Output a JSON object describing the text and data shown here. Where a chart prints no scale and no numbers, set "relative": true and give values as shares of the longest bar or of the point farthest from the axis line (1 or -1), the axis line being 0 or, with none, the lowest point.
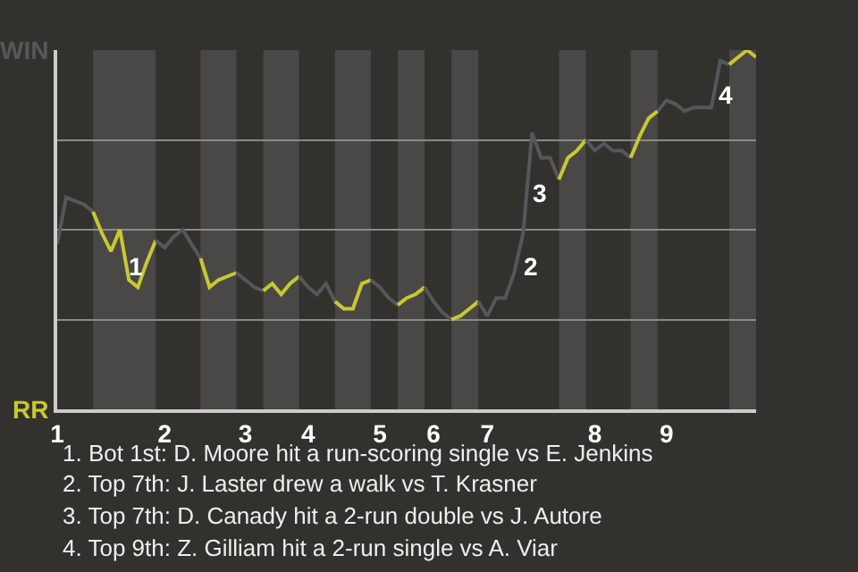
{
  "chart_data": {
    "type": "line",
    "relative": true,
    "categories": [
      "1",
      null,
      null,
      null,
      null,
      null,
      null,
      null,
      null,
      null,
      null,
      null,
      "2",
      null,
      null,
      null,
      null,
      null,
      null,
      null,
      null,
      "3",
      null,
      null,
      null,
      null,
      null,
      null,
      "4",
      null,
      null,
      null,
      null,
      null,
      null,
      null,
      "5",
      null,
      null,
      null,
      null,
      null,
      "6",
      null,
      null,
      null,
      null,
      null,
      "7",
      null,
      null,
      null,
      null,
      null,
      null,
      null,
      null,
      null,
      null,
      null,
      "8",
      null,
      null,
      null,
      null,
      null,
      null,
      null,
      "9",
      null,
      null,
      null,
      null,
      null,
      null,
      null,
      null,
      null,
      null
    ],
    "series": [
      {
        "color": "#55575a",
        "values": [
          0.46,
          0.59,
          0.58,
          0.57,
          0.55,
          null,
          null,
          null,
          null,
          null,
          null,
          null,
          null,
          null,
          null,
          null,
          null,
          null,
          null,
          null,
          null,
          null,
          null,
          null,
          null,
          null,
          null,
          null,
          null,
          null,
          null,
          null,
          null,
          null,
          null,
          null,
          null,
          null,
          null,
          null,
          null,
          null,
          null,
          null,
          null,
          null,
          null,
          null,
          null,
          null,
          null,
          null,
          null,
          null,
          null,
          null,
          null,
          null,
          null,
          null,
          null,
          null,
          null,
          null,
          null,
          null,
          null,
          null,
          null,
          null,
          null,
          null,
          null,
          null,
          null,
          null,
          null,
          null,
          null
        ]
      },
      {
        "color": "#c8c832",
        "values": [
          null,
          null,
          null,
          null,
          0.55,
          0.49,
          0.44,
          0.5,
          0.36,
          0.34,
          0.41,
          0.47,
          null,
          null,
          null,
          null,
          null,
          null,
          null,
          null,
          null,
          null,
          null,
          null,
          null,
          null,
          null,
          null,
          null,
          null,
          null,
          null,
          null,
          null,
          null,
          null,
          null,
          null,
          null,
          null,
          null,
          null,
          null,
          null,
          null,
          null,
          null,
          null,
          null,
          null,
          null,
          null,
          null,
          null,
          null,
          null,
          null,
          null,
          null,
          null,
          null,
          null,
          null,
          null,
          null,
          null,
          null,
          null,
          null,
          null,
          null,
          null,
          null,
          null,
          null,
          null,
          null,
          null,
          null
        ]
      },
      {
        "color": "#55575a",
        "values": [
          null,
          null,
          null,
          null,
          null,
          null,
          null,
          null,
          null,
          null,
          null,
          0.47,
          0.45,
          0.48,
          0.5,
          0.46,
          0.42,
          null,
          null,
          null,
          null,
          null,
          null,
          null,
          null,
          null,
          null,
          null,
          null,
          null,
          null,
          null,
          null,
          null,
          null,
          null,
          null,
          null,
          null,
          null,
          null,
          null,
          null,
          null,
          null,
          null,
          null,
          null,
          null,
          null,
          null,
          null,
          null,
          null,
          null,
          null,
          null,
          null,
          null,
          null,
          null,
          null,
          null,
          null,
          null,
          null,
          null,
          null,
          null,
          null,
          null,
          null,
          null,
          null,
          null,
          null,
          null,
          null,
          null
        ]
      },
      {
        "color": "#c8c832",
        "values": [
          null,
          null,
          null,
          null,
          null,
          null,
          null,
          null,
          null,
          null,
          null,
          null,
          null,
          null,
          null,
          null,
          0.42,
          0.34,
          0.36,
          0.37,
          0.38,
          null,
          null,
          null,
          null,
          null,
          null,
          null,
          null,
          null,
          null,
          null,
          null,
          null,
          null,
          null,
          null,
          null,
          null,
          null,
          null,
          null,
          null,
          null,
          null,
          null,
          null,
          null,
          null,
          null,
          null,
          null,
          null,
          null,
          null,
          null,
          null,
          null,
          null,
          null,
          null,
          null,
          null,
          null,
          null,
          null,
          null,
          null,
          null,
          null,
          null,
          null,
          null,
          null,
          null,
          null,
          null,
          null,
          null
        ]
      },
      {
        "color": "#55575a",
        "values": [
          null,
          null,
          null,
          null,
          null,
          null,
          null,
          null,
          null,
          null,
          null,
          null,
          null,
          null,
          null,
          null,
          null,
          null,
          null,
          null,
          0.38,
          0.36,
          0.34,
          0.33,
          null,
          null,
          null,
          null,
          null,
          null,
          null,
          null,
          null,
          null,
          null,
          null,
          null,
          null,
          null,
          null,
          null,
          null,
          null,
          null,
          null,
          null,
          null,
          null,
          null,
          null,
          null,
          null,
          null,
          null,
          null,
          null,
          null,
          null,
          null,
          null,
          null,
          null,
          null,
          null,
          null,
          null,
          null,
          null,
          null,
          null,
          null,
          null,
          null,
          null,
          null,
          null,
          null,
          null,
          null
        ]
      },
      {
        "color": "#c8c832",
        "values": [
          null,
          null,
          null,
          null,
          null,
          null,
          null,
          null,
          null,
          null,
          null,
          null,
          null,
          null,
          null,
          null,
          null,
          null,
          null,
          null,
          null,
          null,
          null,
          0.33,
          0.35,
          0.32,
          0.35,
          0.37,
          null,
          null,
          null,
          null,
          null,
          null,
          null,
          null,
          null,
          null,
          null,
          null,
          null,
          null,
          null,
          null,
          null,
          null,
          null,
          null,
          null,
          null,
          null,
          null,
          null,
          null,
          null,
          null,
          null,
          null,
          null,
          null,
          null,
          null,
          null,
          null,
          null,
          null,
          null,
          null,
          null,
          null,
          null,
          null,
          null,
          null,
          null,
          null,
          null,
          null,
          null
        ]
      },
      {
        "color": "#55575a",
        "values": [
          null,
          null,
          null,
          null,
          null,
          null,
          null,
          null,
          null,
          null,
          null,
          null,
          null,
          null,
          null,
          null,
          null,
          null,
          null,
          null,
          null,
          null,
          null,
          null,
          null,
          null,
          null,
          0.37,
          0.34,
          0.32,
          0.35,
          0.3,
          null,
          null,
          null,
          null,
          null,
          null,
          null,
          null,
          null,
          null,
          null,
          null,
          null,
          null,
          null,
          null,
          null,
          null,
          null,
          null,
          null,
          null,
          null,
          null,
          null,
          null,
          null,
          null,
          null,
          null,
          null,
          null,
          null,
          null,
          null,
          null,
          null,
          null,
          null,
          null,
          null,
          null,
          null,
          null,
          null,
          null,
          null
        ]
      },
      {
        "color": "#c8c832",
        "values": [
          null,
          null,
          null,
          null,
          null,
          null,
          null,
          null,
          null,
          null,
          null,
          null,
          null,
          null,
          null,
          null,
          null,
          null,
          null,
          null,
          null,
          null,
          null,
          null,
          null,
          null,
          null,
          null,
          null,
          null,
          null,
          0.3,
          0.28,
          0.28,
          0.35,
          0.36,
          null,
          null,
          null,
          null,
          null,
          null,
          null,
          null,
          null,
          null,
          null,
          null,
          null,
          null,
          null,
          null,
          null,
          null,
          null,
          null,
          null,
          null,
          null,
          null,
          null,
          null,
          null,
          null,
          null,
          null,
          null,
          null,
          null,
          null,
          null,
          null,
          null,
          null,
          null,
          null,
          null,
          null,
          null
        ]
      },
      {
        "color": "#55575a",
        "values": [
          null,
          null,
          null,
          null,
          null,
          null,
          null,
          null,
          null,
          null,
          null,
          null,
          null,
          null,
          null,
          null,
          null,
          null,
          null,
          null,
          null,
          null,
          null,
          null,
          null,
          null,
          null,
          null,
          null,
          null,
          null,
          null,
          null,
          null,
          null,
          0.36,
          0.34,
          0.31,
          0.29,
          null,
          null,
          null,
          null,
          null,
          null,
          null,
          null,
          null,
          null,
          null,
          null,
          null,
          null,
          null,
          null,
          null,
          null,
          null,
          null,
          null,
          null,
          null,
          null,
          null,
          null,
          null,
          null,
          null,
          null,
          null,
          null,
          null,
          null,
          null,
          null,
          null,
          null,
          null,
          null
        ]
      },
      {
        "color": "#c8c832",
        "values": [
          null,
          null,
          null,
          null,
          null,
          null,
          null,
          null,
          null,
          null,
          null,
          null,
          null,
          null,
          null,
          null,
          null,
          null,
          null,
          null,
          null,
          null,
          null,
          null,
          null,
          null,
          null,
          null,
          null,
          null,
          null,
          null,
          null,
          null,
          null,
          null,
          null,
          null,
          0.29,
          0.31,
          0.32,
          0.34,
          null,
          null,
          null,
          null,
          null,
          null,
          null,
          null,
          null,
          null,
          null,
          null,
          null,
          null,
          null,
          null,
          null,
          null,
          null,
          null,
          null,
          null,
          null,
          null,
          null,
          null,
          null,
          null,
          null,
          null,
          null,
          null,
          null,
          null,
          null,
          null,
          null
        ]
      },
      {
        "color": "#55575a",
        "values": [
          null,
          null,
          null,
          null,
          null,
          null,
          null,
          null,
          null,
          null,
          null,
          null,
          null,
          null,
          null,
          null,
          null,
          null,
          null,
          null,
          null,
          null,
          null,
          null,
          null,
          null,
          null,
          null,
          null,
          null,
          null,
          null,
          null,
          null,
          null,
          null,
          null,
          null,
          null,
          null,
          null,
          0.34,
          0.3,
          0.27,
          0.25,
          null,
          null,
          null,
          null,
          null,
          null,
          null,
          null,
          null,
          null,
          null,
          null,
          null,
          null,
          null,
          null,
          null,
          null,
          null,
          null,
          null,
          null,
          null,
          null,
          null,
          null,
          null,
          null,
          null,
          null,
          null,
          null,
          null,
          null
        ]
      },
      {
        "color": "#c8c832",
        "values": [
          null,
          null,
          null,
          null,
          null,
          null,
          null,
          null,
          null,
          null,
          null,
          null,
          null,
          null,
          null,
          null,
          null,
          null,
          null,
          null,
          null,
          null,
          null,
          null,
          null,
          null,
          null,
          null,
          null,
          null,
          null,
          null,
          null,
          null,
          null,
          null,
          null,
          null,
          null,
          null,
          null,
          null,
          null,
          null,
          0.25,
          0.26,
          0.28,
          0.3,
          null,
          null,
          null,
          null,
          null,
          null,
          null,
          null,
          null,
          null,
          null,
          null,
          null,
          null,
          null,
          null,
          null,
          null,
          null,
          null,
          null,
          null,
          null,
          null,
          null,
          null,
          null,
          null,
          null,
          null,
          null
        ]
      },
      {
        "color": "#55575a",
        "values": [
          null,
          null,
          null,
          null,
          null,
          null,
          null,
          null,
          null,
          null,
          null,
          null,
          null,
          null,
          null,
          null,
          null,
          null,
          null,
          null,
          null,
          null,
          null,
          null,
          null,
          null,
          null,
          null,
          null,
          null,
          null,
          null,
          null,
          null,
          null,
          null,
          null,
          null,
          null,
          null,
          null,
          null,
          null,
          null,
          null,
          null,
          null,
          0.3,
          0.26,
          0.31,
          0.31,
          0.38,
          0.49,
          0.77,
          0.7,
          0.7,
          0.64,
          null,
          null,
          null,
          null,
          null,
          null,
          null,
          null,
          null,
          null,
          null,
          null,
          null,
          null,
          null,
          null,
          null,
          null,
          null,
          null,
          null,
          null
        ]
      },
      {
        "color": "#c8c832",
        "values": [
          null,
          null,
          null,
          null,
          null,
          null,
          null,
          null,
          null,
          null,
          null,
          null,
          null,
          null,
          null,
          null,
          null,
          null,
          null,
          null,
          null,
          null,
          null,
          null,
          null,
          null,
          null,
          null,
          null,
          null,
          null,
          null,
          null,
          null,
          null,
          null,
          null,
          null,
          null,
          null,
          null,
          null,
          null,
          null,
          null,
          null,
          null,
          null,
          null,
          null,
          null,
          null,
          null,
          null,
          null,
          null,
          0.64,
          0.7,
          0.72,
          0.75,
          null,
          null,
          null,
          null,
          null,
          null,
          null,
          null,
          null,
          null,
          null,
          null,
          null,
          null,
          null,
          null,
          null,
          null,
          null
        ]
      },
      {
        "color": "#55575a",
        "values": [
          null,
          null,
          null,
          null,
          null,
          null,
          null,
          null,
          null,
          null,
          null,
          null,
          null,
          null,
          null,
          null,
          null,
          null,
          null,
          null,
          null,
          null,
          null,
          null,
          null,
          null,
          null,
          null,
          null,
          null,
          null,
          null,
          null,
          null,
          null,
          null,
          null,
          null,
          null,
          null,
          null,
          null,
          null,
          null,
          null,
          null,
          null,
          null,
          null,
          null,
          null,
          null,
          null,
          null,
          null,
          null,
          null,
          null,
          null,
          0.75,
          0.72,
          0.74,
          0.72,
          0.72,
          0.7,
          null,
          null,
          null,
          null,
          null,
          null,
          null,
          null,
          null,
          null,
          null,
          null,
          null,
          null
        ]
      },
      {
        "color": "#c8c832",
        "values": [
          null,
          null,
          null,
          null,
          null,
          null,
          null,
          null,
          null,
          null,
          null,
          null,
          null,
          null,
          null,
          null,
          null,
          null,
          null,
          null,
          null,
          null,
          null,
          null,
          null,
          null,
          null,
          null,
          null,
          null,
          null,
          null,
          null,
          null,
          null,
          null,
          null,
          null,
          null,
          null,
          null,
          null,
          null,
          null,
          null,
          null,
          null,
          null,
          null,
          null,
          null,
          null,
          null,
          null,
          null,
          null,
          null,
          null,
          null,
          null,
          null,
          null,
          null,
          null,
          0.7,
          0.76,
          0.81,
          0.83,
          null,
          null,
          null,
          null,
          null,
          null,
          null,
          null,
          null,
          null,
          null
        ]
      },
      {
        "color": "#55575a",
        "values": [
          null,
          null,
          null,
          null,
          null,
          null,
          null,
          null,
          null,
          null,
          null,
          null,
          null,
          null,
          null,
          null,
          null,
          null,
          null,
          null,
          null,
          null,
          null,
          null,
          null,
          null,
          null,
          null,
          null,
          null,
          null,
          null,
          null,
          null,
          null,
          null,
          null,
          null,
          null,
          null,
          null,
          null,
          null,
          null,
          null,
          null,
          null,
          null,
          null,
          null,
          null,
          null,
          null,
          null,
          null,
          null,
          null,
          null,
          null,
          null,
          null,
          null,
          null,
          null,
          null,
          null,
          null,
          0.83,
          0.86,
          0.85,
          0.83,
          0.84,
          0.84,
          0.84,
          0.97,
          0.96,
          null,
          null,
          null
        ]
      },
      {
        "color": "#c8c832",
        "values": [
          null,
          null,
          null,
          null,
          null,
          null,
          null,
          null,
          null,
          null,
          null,
          null,
          null,
          null,
          null,
          null,
          null,
          null,
          null,
          null,
          null,
          null,
          null,
          null,
          null,
          null,
          null,
          null,
          null,
          null,
          null,
          null,
          null,
          null,
          null,
          null,
          null,
          null,
          null,
          null,
          null,
          null,
          null,
          null,
          null,
          null,
          null,
          null,
          null,
          null,
          null,
          null,
          null,
          null,
          null,
          null,
          null,
          null,
          null,
          null,
          null,
          null,
          null,
          null,
          null,
          null,
          null,
          null,
          null,
          null,
          null,
          null,
          null,
          null,
          null,
          0.96,
          0.98,
          1,
          0.98
        ]
      }
    ],
    "annotations": [
      "WIN",
      "RR",
      "1",
      "2",
      "3",
      "4",
      "1. Bot 1st: D. Moore hit a run-scoring single vs E. Jenkins",
      "2. Top 7th: J. Laster drew a walk vs T. Krasner",
      "3. Top 7th: D. Canady hit a 2-run double vs J. Autore",
      "4. Top 9th: Z. Gilliam hit a 2-run single vs A. Viar"
    ],
    "grid": "y",
    "marker": "none",
    "line_style": "solid"
  }
}
